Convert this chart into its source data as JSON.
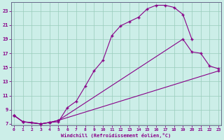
{
  "xlabel": "Windchill (Refroidissement éolien,°C)",
  "bg_color": "#cceee8",
  "line_color": "#880088",
  "grid_color": "#99ccbb",
  "xlim": [
    -0.3,
    23.3
  ],
  "ylim": [
    6.8,
    24.2
  ],
  "yticks": [
    7,
    9,
    11,
    13,
    15,
    17,
    19,
    21,
    23
  ],
  "xticks": [
    0,
    1,
    2,
    3,
    4,
    5,
    6,
    7,
    8,
    9,
    10,
    11,
    12,
    13,
    14,
    15,
    16,
    17,
    18,
    19,
    20,
    21,
    22,
    23
  ],
  "curve1_x": [
    0,
    1,
    2,
    3,
    4,
    5,
    6,
    7,
    8,
    9,
    10,
    11,
    12,
    13,
    14,
    15,
    16,
    17,
    18,
    19,
    20
  ],
  "curve1_y": [
    8.2,
    7.3,
    7.2,
    7.0,
    7.2,
    7.3,
    9.3,
    10.2,
    12.3,
    14.5,
    16.0,
    19.5,
    20.9,
    21.5,
    22.1,
    23.3,
    23.8,
    23.8,
    23.5,
    22.5,
    19.0
  ],
  "curve2_x": [
    0,
    1,
    3,
    4,
    5,
    19,
    20,
    21,
    22,
    23
  ],
  "curve2_y": [
    8.2,
    7.3,
    7.0,
    7.2,
    7.5,
    19.0,
    17.2,
    17.0,
    15.2,
    14.8
  ],
  "curve3_x": [
    0,
    1,
    3,
    4,
    5,
    23
  ],
  "curve3_y": [
    8.2,
    7.3,
    7.0,
    7.2,
    7.5,
    14.5
  ]
}
